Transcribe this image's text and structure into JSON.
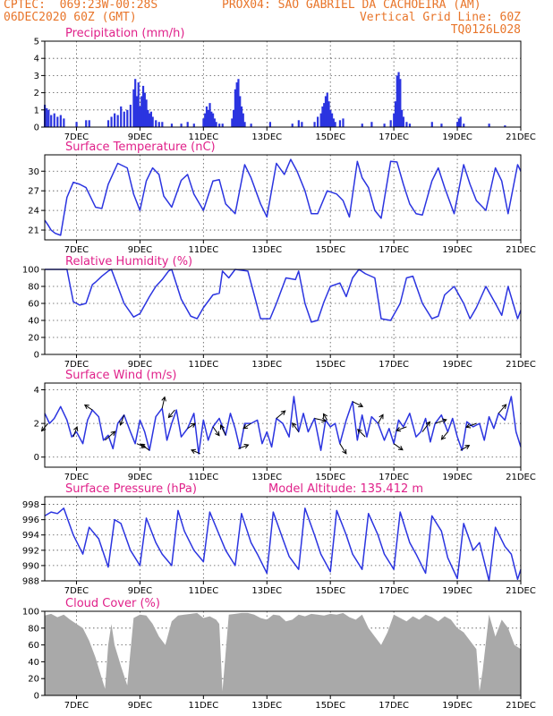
{
  "header": {
    "left1": "CPTEC:  069:23W-00:28S",
    "center1": "PROX04: SAO GABRIEL DA CACHOEIRA (AM)",
    "left2": "06DEC2020 60Z (GMT)",
    "right2": "Vertical Grid Line: 60Z",
    "right3": "TQ0126L028"
  },
  "colors": {
    "header": "#e8752a",
    "title": "#e0218a",
    "series": "#2b34e0",
    "cloud": "#a9a9a9"
  },
  "x_axis": {
    "labels": [
      "7DEC",
      "9DEC",
      "11DEC",
      "13DEC",
      "15DEC",
      "17DEC",
      "19DEC",
      "21DEC"
    ],
    "label_days": [
      7,
      9,
      11,
      13,
      15,
      17,
      19,
      21
    ],
    "start_day": 6.0,
    "end_day": 21.0
  },
  "chart_data": [
    {
      "id": "precip",
      "type": "bar",
      "title": "Precipitation (mm/h)",
      "ylim": [
        0,
        5
      ],
      "yticks": [
        0,
        1,
        2,
        3,
        4,
        5
      ],
      "grid": true,
      "color": "#2b34e0",
      "x": [
        6.0,
        6.06,
        6.12,
        6.2,
        6.3,
        6.4,
        6.5,
        6.6,
        7.0,
        7.3,
        7.4,
        8.0,
        8.1,
        8.2,
        8.3,
        8.4,
        8.5,
        8.6,
        8.7,
        8.8,
        8.85,
        8.9,
        8.95,
        9.0,
        9.05,
        9.1,
        9.15,
        9.2,
        9.25,
        9.3,
        9.35,
        9.4,
        9.5,
        9.6,
        9.7,
        10.0,
        10.3,
        10.5,
        10.7,
        11.0,
        11.05,
        11.1,
        11.15,
        11.2,
        11.25,
        11.3,
        11.35,
        11.4,
        11.5,
        11.6,
        11.9,
        11.95,
        12.0,
        12.05,
        12.1,
        12.15,
        12.2,
        12.25,
        12.3,
        12.5,
        13.1,
        13.8,
        14.0,
        14.1,
        14.5,
        14.6,
        14.7,
        14.75,
        14.8,
        14.85,
        14.9,
        14.95,
        15.0,
        15.05,
        15.1,
        15.15,
        15.3,
        15.4,
        16.0,
        16.3,
        16.7,
        16.9,
        17.0,
        17.05,
        17.1,
        17.15,
        17.2,
        17.25,
        17.3,
        17.4,
        17.5,
        18.2,
        18.5,
        19.0,
        19.05,
        19.1,
        19.2,
        20.0,
        20.5
      ],
      "values": [
        1.3,
        1.1,
        1.0,
        0.7,
        0.8,
        0.6,
        0.7,
        0.5,
        0.3,
        0.4,
        0.4,
        0.4,
        0.6,
        0.8,
        0.7,
        1.2,
        0.9,
        1.0,
        1.3,
        2.2,
        2.8,
        1.8,
        2.6,
        1.2,
        1.8,
        2.4,
        2.0,
        1.6,
        1.0,
        0.8,
        0.9,
        0.6,
        0.4,
        0.3,
        0.3,
        0.2,
        0.2,
        0.3,
        0.2,
        0.5,
        0.8,
        1.2,
        1.0,
        1.4,
        0.9,
        0.8,
        0.5,
        0.3,
        0.2,
        0.2,
        0.5,
        1.0,
        2.2,
        2.6,
        2.8,
        1.8,
        1.2,
        0.8,
        0.3,
        0.2,
        0.3,
        0.2,
        0.4,
        0.3,
        0.3,
        0.6,
        0.8,
        1.2,
        1.4,
        1.8,
        2.0,
        1.5,
        1.0,
        0.8,
        0.5,
        0.3,
        0.4,
        0.5,
        0.2,
        0.3,
        0.2,
        0.4,
        0.8,
        1.5,
        3.0,
        3.2,
        2.8,
        1.0,
        0.6,
        0.3,
        0.2,
        0.3,
        0.2,
        0.3,
        0.5,
        0.6,
        0.2,
        0.2,
        0.1
      ]
    },
    {
      "id": "temp",
      "type": "line",
      "title": "Surface Temperature (nC)",
      "ylim": [
        19.5,
        32.5
      ],
      "yticks": [
        21,
        24,
        27,
        30
      ],
      "grid": true,
      "color": "#2b34e0",
      "x": [
        6.0,
        6.1,
        6.2,
        6.33,
        6.5,
        6.7,
        6.9,
        7.1,
        7.3,
        7.6,
        7.8,
        8.0,
        8.3,
        8.6,
        8.8,
        9.0,
        9.2,
        9.4,
        9.6,
        9.75,
        10.0,
        10.3,
        10.5,
        10.7,
        11.0,
        11.3,
        11.5,
        11.7,
        12.0,
        12.3,
        12.5,
        12.8,
        13.0,
        13.3,
        13.55,
        13.75,
        13.95,
        14.2,
        14.4,
        14.6,
        14.9,
        15.2,
        15.4,
        15.6,
        15.85,
        16.0,
        16.2,
        16.4,
        16.6,
        16.9,
        17.1,
        17.3,
        17.5,
        17.7,
        17.9,
        18.2,
        18.4,
        18.6,
        18.9,
        19.2,
        19.4,
        19.6,
        19.9,
        20.2,
        20.4,
        20.6,
        20.9,
        21.0
      ],
      "values": [
        22.5,
        21.8,
        21.0,
        20.5,
        20.2,
        26.0,
        28.3,
        28.0,
        27.5,
        24.5,
        24.3,
        28.0,
        31.2,
        30.5,
        26.5,
        24.0,
        28.5,
        30.5,
        29.5,
        26.2,
        24.5,
        28.6,
        29.5,
        26.5,
        24.0,
        28.5,
        28.7,
        25.0,
        23.5,
        31.0,
        29.0,
        25.0,
        23.0,
        31.2,
        29.5,
        31.8,
        30.0,
        27.0,
        23.5,
        23.5,
        27.0,
        26.5,
        25.5,
        23.0,
        31.5,
        29.0,
        27.5,
        24.0,
        22.8,
        31.5,
        31.4,
        28.0,
        25.0,
        23.5,
        23.3,
        28.5,
        30.5,
        27.5,
        23.5,
        31.0,
        28.0,
        25.5,
        24.0,
        30.5,
        28.5,
        23.5,
        31.0,
        30.0
      ]
    },
    {
      "id": "rh",
      "type": "line",
      "title": "Relative Humidity (%)",
      "ylim": [
        0,
        100
      ],
      "yticks": [
        0,
        20,
        40,
        60,
        80,
        100
      ],
      "grid": true,
      "color": "#2b34e0",
      "x": [
        6.0,
        6.2,
        6.4,
        6.7,
        6.9,
        7.1,
        7.3,
        7.5,
        7.6,
        7.8,
        8.0,
        8.1,
        8.2,
        8.5,
        8.8,
        9.0,
        9.3,
        9.5,
        9.7,
        9.9,
        10.0,
        10.3,
        10.6,
        10.8,
        11.0,
        11.3,
        11.5,
        11.6,
        11.8,
        12.0,
        12.4,
        12.6,
        12.8,
        13.1,
        13.3,
        13.6,
        13.9,
        14.0,
        14.2,
        14.4,
        14.6,
        14.8,
        15.0,
        15.3,
        15.5,
        15.7,
        15.9,
        16.1,
        16.4,
        16.6,
        16.9,
        17.2,
        17.4,
        17.6,
        17.9,
        18.2,
        18.4,
        18.6,
        18.9,
        19.2,
        19.4,
        19.6,
        19.9,
        20.2,
        20.4,
        20.6,
        20.9,
        21.0
      ],
      "values": [
        100,
        100,
        100,
        100,
        62,
        58,
        60,
        82,
        85,
        92,
        98,
        100,
        90,
        60,
        44,
        48,
        68,
        80,
        88,
        98,
        100,
        65,
        45,
        42,
        55,
        70,
        72,
        98,
        90,
        100,
        98,
        70,
        42,
        42,
        60,
        90,
        88,
        98,
        60,
        38,
        40,
        62,
        80,
        84,
        68,
        90,
        100,
        95,
        90,
        42,
        40,
        60,
        90,
        92,
        60,
        42,
        45,
        70,
        80,
        60,
        42,
        55,
        80,
        60,
        46,
        80,
        42,
        52
      ]
    },
    {
      "id": "wind",
      "type": "line",
      "title": "Surface Wind (m/s)",
      "ylim": [
        -0.6,
        4.4
      ],
      "yticks": [
        0,
        2,
        4
      ],
      "grid": true,
      "color": "#2b34e0",
      "x": [
        6.0,
        6.15,
        6.3,
        6.5,
        6.7,
        6.85,
        7.0,
        7.2,
        7.35,
        7.5,
        7.7,
        7.85,
        8.0,
        8.15,
        8.3,
        8.5,
        8.7,
        8.85,
        9.0,
        9.15,
        9.3,
        9.5,
        9.7,
        9.85,
        10.0,
        10.15,
        10.3,
        10.5,
        10.7,
        10.85,
        11.0,
        11.15,
        11.3,
        11.5,
        11.7,
        11.85,
        12.0,
        12.15,
        12.3,
        12.5,
        12.7,
        12.85,
        13.0,
        13.15,
        13.3,
        13.5,
        13.7,
        13.85,
        14.0,
        14.15,
        14.3,
        14.5,
        14.7,
        14.85,
        15.0,
        15.15,
        15.3,
        15.5,
        15.7,
        15.85,
        16.0,
        16.15,
        16.3,
        16.5,
        16.7,
        16.85,
        17.0,
        17.15,
        17.3,
        17.5,
        17.7,
        17.85,
        18.0,
        18.15,
        18.3,
        18.5,
        18.7,
        18.85,
        19.0,
        19.15,
        19.3,
        19.5,
        19.7,
        19.85,
        20.0,
        20.15,
        20.3,
        20.5,
        20.7,
        20.85,
        21.0
      ],
      "values": [
        2.6,
        2.0,
        2.3,
        3.0,
        2.2,
        1.2,
        1.5,
        0.8,
        2.2,
        2.8,
        2.4,
        1.0,
        1.3,
        0.5,
        2.0,
        2.5,
        1.5,
        0.8,
        2.2,
        1.5,
        0.4,
        2.4,
        2.9,
        1.0,
        2.0,
        2.8,
        1.2,
        1.7,
        2.6,
        0.2,
        2.2,
        1.0,
        1.8,
        2.3,
        1.3,
        2.6,
        1.7,
        0.5,
        2.0,
        2.0,
        2.2,
        0.8,
        1.5,
        0.6,
        2.3,
        2.0,
        1.2,
        3.6,
        1.5,
        2.6,
        1.5,
        2.3,
        0.4,
        2.2,
        1.8,
        2.0,
        0.8,
        2.2,
        3.3,
        1.0,
        2.5,
        1.2,
        2.4,
        2.0,
        1.0,
        1.7,
        0.8,
        2.2,
        1.8,
        2.6,
        1.2,
        1.5,
        2.3,
        0.9,
        2.0,
        2.5,
        1.5,
        2.3,
        1.2,
        0.4,
        2.1,
        1.8,
        2.0,
        1.0,
        2.4,
        1.7,
        2.6,
        2.2,
        3.6,
        1.5,
        0.6
      ],
      "arrows_x": [
        6.1,
        6.9,
        7.5,
        7.9,
        8.5,
        8.9,
        9.3,
        9.7,
        10.1,
        10.5,
        10.9,
        11.3,
        11.7,
        12.1,
        12.5,
        13.3,
        14.0,
        14.5,
        14.9,
        15.3,
        15.7,
        16.1,
        16.5,
        17.0,
        17.4,
        17.9,
        18.3,
        18.7,
        19.1,
        19.6,
        20.3
      ],
      "arrows_u": [
        -0.5,
        0.3,
        -0.6,
        0.8,
        -0.3,
        0.7,
        -0.7,
        0.2,
        -0.5,
        0.6,
        -0.7,
        0.5,
        -0.4,
        0.8,
        -0.6,
        0.7,
        -0.5,
        0.9,
        -0.3,
        0.5,
        0.8,
        -0.6,
        0.4,
        0.7,
        -0.8,
        0.6,
        0.9,
        -0.5,
        0.7,
        -0.8,
        0.6
      ],
      "arrows_v": [
        -0.6,
        0.8,
        0.4,
        0.7,
        -0.8,
        -0.3,
        0.5,
        0.9,
        -0.6,
        0.4,
        0.3,
        -0.7,
        0.8,
        0.3,
        -0.4,
        0.6,
        0.7,
        -0.2,
        0.5,
        -0.8,
        -0.4,
        0.6,
        0.7,
        -0.5,
        -0.3,
        0.8,
        0.3,
        -0.6,
        0.4,
        -0.3,
        0.7
      ]
    },
    {
      "id": "pres",
      "type": "line",
      "title": "Surface Pressure (hPa)",
      "ylim": [
        988,
        999
      ],
      "yticks": [
        988,
        990,
        992,
        994,
        996,
        998
      ],
      "grid": true,
      "color": "#2b34e0",
      "x": [
        6.0,
        6.2,
        6.4,
        6.6,
        6.9,
        7.2,
        7.4,
        7.7,
        8.0,
        8.2,
        8.4,
        8.7,
        9.0,
        9.2,
        9.5,
        9.7,
        10.0,
        10.2,
        10.4,
        10.7,
        11.0,
        11.2,
        11.5,
        11.7,
        12.0,
        12.2,
        12.5,
        12.7,
        13.0,
        13.2,
        13.5,
        13.7,
        14.0,
        14.2,
        14.5,
        14.7,
        15.0,
        15.2,
        15.5,
        15.7,
        16.0,
        16.2,
        16.5,
        16.7,
        17.0,
        17.2,
        17.5,
        17.7,
        18.0,
        18.2,
        18.5,
        18.7,
        19.0,
        19.2,
        19.5,
        19.7,
        20.0,
        20.2,
        20.5,
        20.7,
        20.9,
        21.0
      ],
      "values": [
        996.5,
        997.0,
        996.8,
        997.5,
        994.0,
        991.5,
        995.0,
        993.5,
        989.8,
        996.0,
        995.5,
        992.0,
        990.0,
        996.2,
        993.0,
        991.5,
        990.0,
        997.2,
        994.5,
        992.0,
        990.5,
        997.0,
        994.0,
        992.0,
        990.0,
        996.8,
        993.0,
        991.5,
        989.0,
        997.0,
        993.5,
        991.2,
        989.5,
        997.5,
        994.0,
        991.5,
        989.2,
        997.2,
        994.0,
        991.5,
        989.5,
        996.8,
        994.0,
        991.5,
        989.5,
        997.0,
        993.0,
        991.5,
        989.0,
        996.5,
        994.5,
        991.0,
        988.3,
        995.5,
        992.0,
        993.0,
        988.0,
        995.0,
        992.5,
        991.5,
        988.2,
        989.5
      ],
      "note": "Model Altitude: 135.412  m"
    },
    {
      "id": "cloud",
      "type": "area",
      "title": "Cloud Cover (%)",
      "ylim": [
        0,
        100
      ],
      "yticks": [
        0,
        20,
        40,
        60,
        80,
        100
      ],
      "grid": true,
      "color": "#a9a9a9",
      "x": [
        6.0,
        6.2,
        6.4,
        6.6,
        6.8,
        7.0,
        7.2,
        7.4,
        7.6,
        7.8,
        7.9,
        8.0,
        8.1,
        8.2,
        8.4,
        8.6,
        8.8,
        9.0,
        9.2,
        9.4,
        9.6,
        9.8,
        10.0,
        10.2,
        10.4,
        10.6,
        10.8,
        11.0,
        11.2,
        11.4,
        11.5,
        11.6,
        11.8,
        12.0,
        12.2,
        12.4,
        12.6,
        12.8,
        13.0,
        13.2,
        13.4,
        13.6,
        13.8,
        14.0,
        14.2,
        14.4,
        14.6,
        14.8,
        15.0,
        15.2,
        15.4,
        15.6,
        15.8,
        16.0,
        16.2,
        16.4,
        16.6,
        16.8,
        17.0,
        17.2,
        17.4,
        17.6,
        17.8,
        18.0,
        18.2,
        18.4,
        18.6,
        18.8,
        19.0,
        19.2,
        19.4,
        19.6,
        19.7,
        19.8,
        20.0,
        20.2,
        20.4,
        20.6,
        20.8,
        21.0
      ],
      "values": [
        95,
        97,
        93,
        96,
        90,
        85,
        80,
        65,
        45,
        20,
        8,
        60,
        85,
        60,
        35,
        12,
        92,
        96,
        95,
        85,
        70,
        60,
        88,
        95,
        96,
        97,
        98,
        92,
        94,
        90,
        85,
        5,
        96,
        97,
        98,
        98,
        96,
        92,
        90,
        96,
        95,
        88,
        90,
        96,
        94,
        97,
        96,
        95,
        97,
        96,
        98,
        93,
        90,
        96,
        80,
        70,
        60,
        75,
        96,
        92,
        88,
        94,
        90,
        96,
        93,
        88,
        94,
        90,
        80,
        75,
        65,
        55,
        5,
        30,
        96,
        70,
        90,
        80,
        60,
        55
      ]
    }
  ]
}
